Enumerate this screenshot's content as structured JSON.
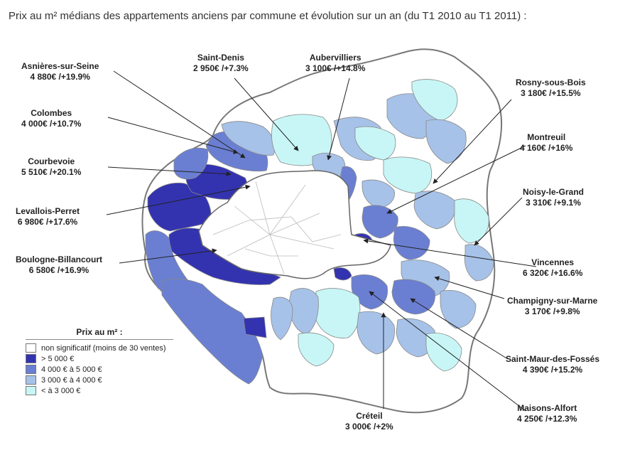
{
  "title": "Prix au m² médians des appartements anciens par commune et évolution sur un an (du T1 2010 au T1 2011) :",
  "colors": {
    "not_significant": "#ffffff",
    "over_5000": "#3333b0",
    "from_4000_to_5000": "#6a7fd2",
    "from_3000_to_4000": "#a7c2e8",
    "under_3000": "#c8f6f6",
    "border": "#888888",
    "paris_border": "#aaaaaa",
    "arrow": "#222222"
  },
  "legend": {
    "title": "Prix au m² :",
    "items": [
      {
        "label": "non significatif (moins de 30 ventes)",
        "color": "#ffffff"
      },
      {
        "label": "> 5 000 €",
        "color": "#3333b0"
      },
      {
        "label": "4 000 € à 5 000 €",
        "color": "#6a7fd2"
      },
      {
        "label": "3 000 € à 4 000 €",
        "color": "#a7c2e8"
      },
      {
        "label": "< à 3 000 €",
        "color": "#c8f6f6"
      }
    ]
  },
  "communes": [
    {
      "name": "Asnières-sur-Seine",
      "value": "4 880€ /+19.9%"
    },
    {
      "name": "Colombes",
      "value": "4 000€ /+10.7%"
    },
    {
      "name": "Courbevoie",
      "value": "5 510€ /+20.1%"
    },
    {
      "name": "Levallois-Perret",
      "value": "6 980€ /+17.6%"
    },
    {
      "name": "Boulogne-Billancourt",
      "value": "6 580€ /+16.9%"
    },
    {
      "name": "Saint-Denis",
      "value": "2 950€ /+7.3%"
    },
    {
      "name": "Aubervilliers",
      "value": "3 100€ /+14.8%"
    },
    {
      "name": "Rosny-sous-Bois",
      "value": "3 180€ /+15.5%"
    },
    {
      "name": "Montreuil",
      "value": "4 160€ /+16%"
    },
    {
      "name": "Noisy-le-Grand",
      "value": "3 310€ /+9.1%"
    },
    {
      "name": "Vincennes",
      "value": "6 320€ /+16.6%"
    },
    {
      "name": "Champigny-sur-Marne",
      "value": "3 170€ /+9.8%"
    },
    {
      "name": "Saint-Maur-des-Fossés",
      "value": "4 390€ /+15.2%"
    },
    {
      "name": "Maisons-Alfort",
      "value": "4 250€ /+12.3%"
    },
    {
      "name": "Créteil",
      "value": "3 000€ /+2%"
    }
  ]
}
